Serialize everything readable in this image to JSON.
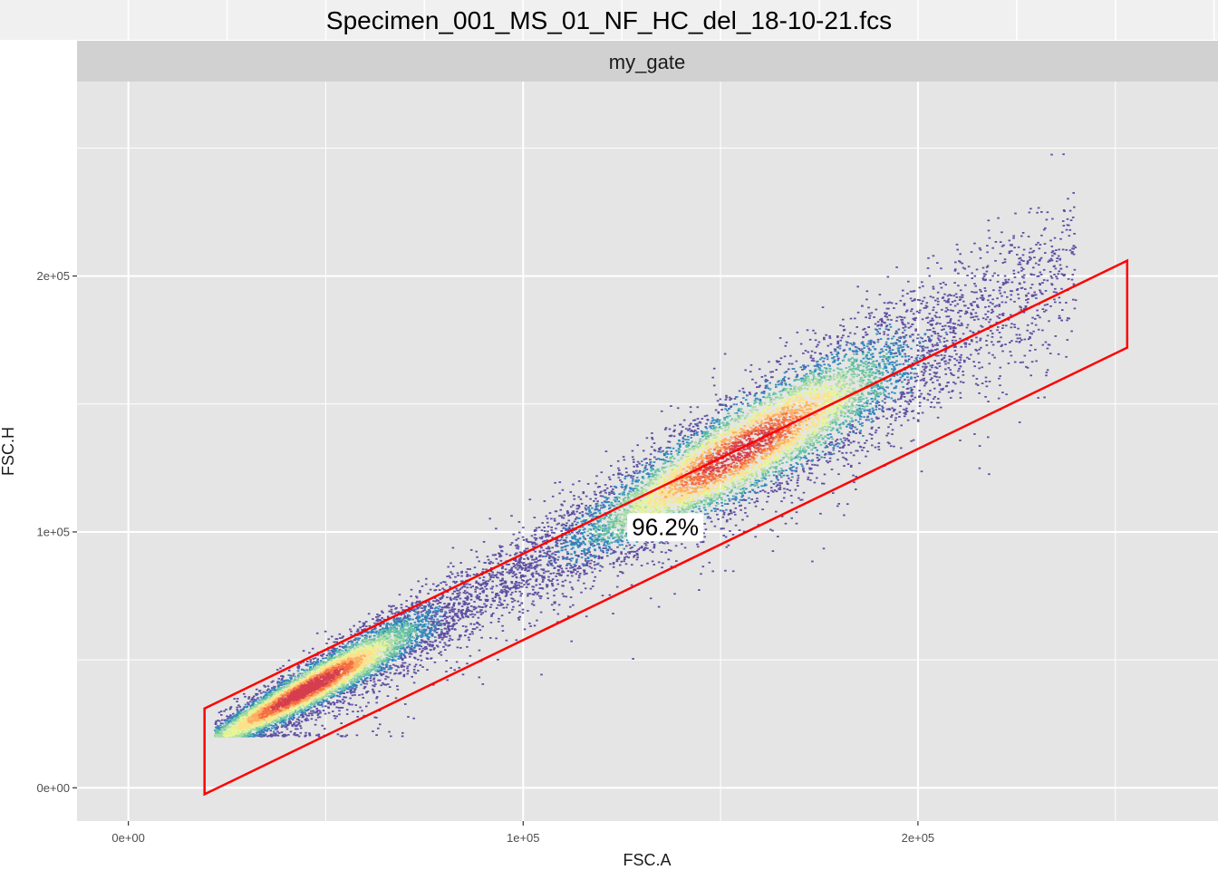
{
  "colors": {
    "title_band": "#f0f0f0",
    "title_band_lines": "#ffffff",
    "strip_bg": "#d1d1d1",
    "panel_bg": "#e5e5e5",
    "grid_major": "#ffffff",
    "gate": "#ff0000",
    "density": [
      "#5e4fa2",
      "#3288bd",
      "#66c2a5",
      "#abdda4",
      "#e6f598",
      "#fee08b",
      "#fdae61",
      "#f46d43",
      "#d53e4f"
    ]
  },
  "chart_data": {
    "type": "scatter",
    "subtype": "hexbin-density",
    "title": "Specimen_001_MS_01_NF_HC_del_18-10-21.fcs",
    "facet_label": "my_gate",
    "xlabel": "FSC.A",
    "ylabel": "FSC.H",
    "xlim": [
      -13000,
      276000
    ],
    "ylim": [
      -13000,
      276000
    ],
    "x_ticks": [
      {
        "value": 0,
        "label": "0e+00"
      },
      {
        "value": 100000,
        "label": "1e+05"
      },
      {
        "value": 200000,
        "label": "2e+05"
      }
    ],
    "y_ticks": [
      {
        "value": 0,
        "label": "0e+00"
      },
      {
        "value": 100000,
        "label": "1e+05"
      },
      {
        "value": 200000,
        "label": "2e+05"
      }
    ],
    "density_ridge": {
      "x_min": 22000,
      "x_max": 240000,
      "y_floor": 20000,
      "slope": 0.85,
      "intercept": 0,
      "peaks_at_x": [
        45000,
        155000
      ]
    },
    "gate": {
      "name": "my_gate",
      "vertices": [
        [
          19300,
          31000
        ],
        [
          253000,
          206000
        ],
        [
          253000,
          172000
        ],
        [
          19300,
          -2500
        ]
      ]
    },
    "gate_percentage": {
      "label": "96.2%",
      "x": 136000,
      "y": 102000
    }
  }
}
